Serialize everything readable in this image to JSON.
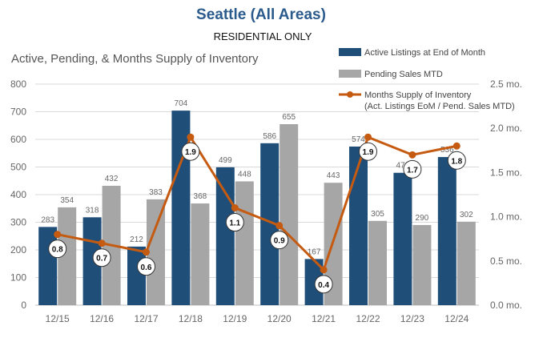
{
  "chart_data": {
    "type": "bar",
    "title": "Seattle (All Areas)",
    "subtitle": "RESIDENTIAL ONLY",
    "chart_title": "Active, Pending, & Months Supply of Inventory",
    "categories": [
      "12/15",
      "12/16",
      "12/17",
      "12/18",
      "12/19",
      "12/20",
      "12/21",
      "12/22",
      "12/23",
      "12/24"
    ],
    "series": [
      {
        "name": "Active Listings at End of Month",
        "type": "bar",
        "color": "#1f4e79",
        "values": [
          283,
          318,
          212,
          704,
          499,
          586,
          167,
          574,
          479,
          536
        ],
        "labels": [
          "283",
          "318",
          "212",
          "704",
          "499",
          "586",
          "167",
          "574",
          "479",
          "536"
        ]
      },
      {
        "name": "Pending Sales MTD",
        "type": "bar",
        "color": "#a6a6a6",
        "values": [
          354,
          432,
          383,
          368,
          448,
          655,
          443,
          305,
          290,
          302
        ],
        "labels": [
          "354",
          "432",
          "383",
          "368",
          "448",
          "655",
          "443",
          "305",
          "290",
          "302"
        ]
      },
      {
        "name": "Months Supply of Inventory",
        "name_line2": "(Act. Listings EoM / Pend. Sales MTD)",
        "type": "line",
        "color": "#c55a11",
        "axis": "right",
        "values": [
          0.8,
          0.7,
          0.6,
          1.9,
          1.1,
          0.9,
          0.4,
          1.9,
          1.7,
          1.8
        ],
        "labels": [
          "0.8",
          "0.7",
          "0.6",
          "1.9",
          "1.1",
          "0.9",
          "0.4",
          "1.9",
          "1.7",
          "1.8"
        ]
      }
    ],
    "ylim": [
      0,
      800
    ],
    "yticks": [
      "0",
      "100",
      "200",
      "300",
      "400",
      "500",
      "600",
      "700",
      "800"
    ],
    "y2lim": [
      0,
      2.5
    ],
    "y2ticks": [
      "0.0 mo.",
      "0.5 mo.",
      "1.0 mo.",
      "1.5 mo.",
      "2.0 mo.",
      "2.5 mo."
    ],
    "legend_position": "top-right",
    "grid": true
  }
}
